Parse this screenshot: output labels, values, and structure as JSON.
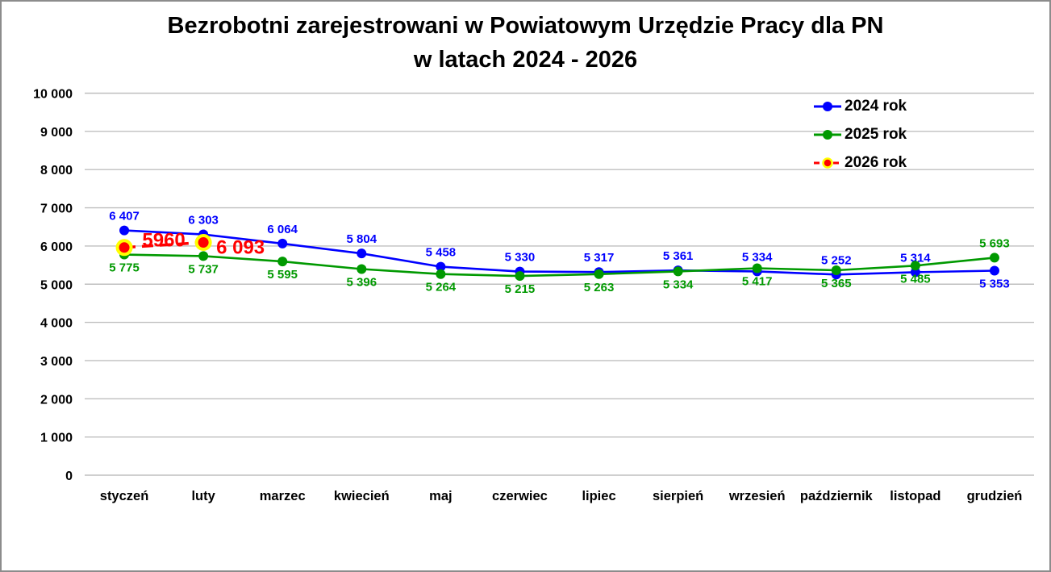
{
  "header": {
    "line1": "Bezrobotni zarejestrowani w Powiatowym Urzędzie Pracy dla PN",
    "line2": "w latach 2024 - 2026"
  },
  "colors": {
    "series_2024": "#0000ff",
    "series_2025": "#009900",
    "series_2026": "#ff0000",
    "series_2026_marker_ring": "#ffff00",
    "gridline": "#bfbfbf",
    "frame_border": "#8c8c8c",
    "background": "#ffffff",
    "text": "#000000"
  },
  "chart_data": {
    "type": "line",
    "title": "Bezrobotni zarejestrowani w Powiatowym Urzędzie Pracy dla PN w latach 2024 - 2026",
    "categories": [
      "styczeń",
      "luty",
      "marzec",
      "kwiecień",
      "maj",
      "czerwiec",
      "lipiec",
      "sierpień",
      "wrzesień",
      "październik",
      "listopad",
      "grudzień"
    ],
    "ylim": [
      0,
      10000
    ],
    "y_tick_step": 1000,
    "y_tick_labels": [
      "0",
      "1 000",
      "2 000",
      "3 000",
      "4 000",
      "5 000",
      "6 000",
      "7 000",
      "8 000",
      "9 000",
      "10 000"
    ],
    "grid": true,
    "legend_position": "top-right",
    "series": [
      {
        "name": "2024 rok",
        "color": "#0000ff",
        "marker": "circle",
        "line_style": "solid",
        "values": [
          6407,
          6303,
          6064,
          5804,
          5458,
          5330,
          5317,
          5361,
          5334,
          5252,
          5314,
          5353
        ],
        "labels": [
          "6 407",
          "6 303",
          "6 064",
          "5 804",
          "5 458",
          "5 330",
          "5 317",
          "5 361",
          "5 334",
          "5 252",
          "5 314",
          "5 353"
        ],
        "label_side": [
          "above",
          "above",
          "above",
          "above",
          "above",
          "above",
          "above",
          "above",
          "above",
          "above",
          "above",
          "below"
        ]
      },
      {
        "name": "2025 rok",
        "color": "#009900",
        "marker": "circle",
        "line_style": "solid",
        "values": [
          5775,
          5737,
          5595,
          5396,
          5264,
          5215,
          5263,
          5334,
          5417,
          5365,
          5485,
          5693
        ],
        "labels": [
          "5 775",
          "5 737",
          "5 595",
          "5 396",
          "5 264",
          "5 215",
          "5 263",
          "5 334",
          "5 417",
          "5 365",
          "5 485",
          "5 693"
        ],
        "label_side": [
          "below",
          "below",
          "below",
          "below",
          "below",
          "below",
          "below",
          "below",
          "below",
          "below",
          "below",
          "above"
        ]
      },
      {
        "name": "2026 rok",
        "color": "#ff0000",
        "marker": "circle",
        "marker_ring": "#ffff00",
        "line_style": "dashed",
        "values": [
          5960,
          6093,
          null,
          null,
          null,
          null,
          null,
          null,
          null,
          null,
          null,
          null
        ],
        "labels": [
          "5960",
          "6 093"
        ]
      }
    ]
  }
}
